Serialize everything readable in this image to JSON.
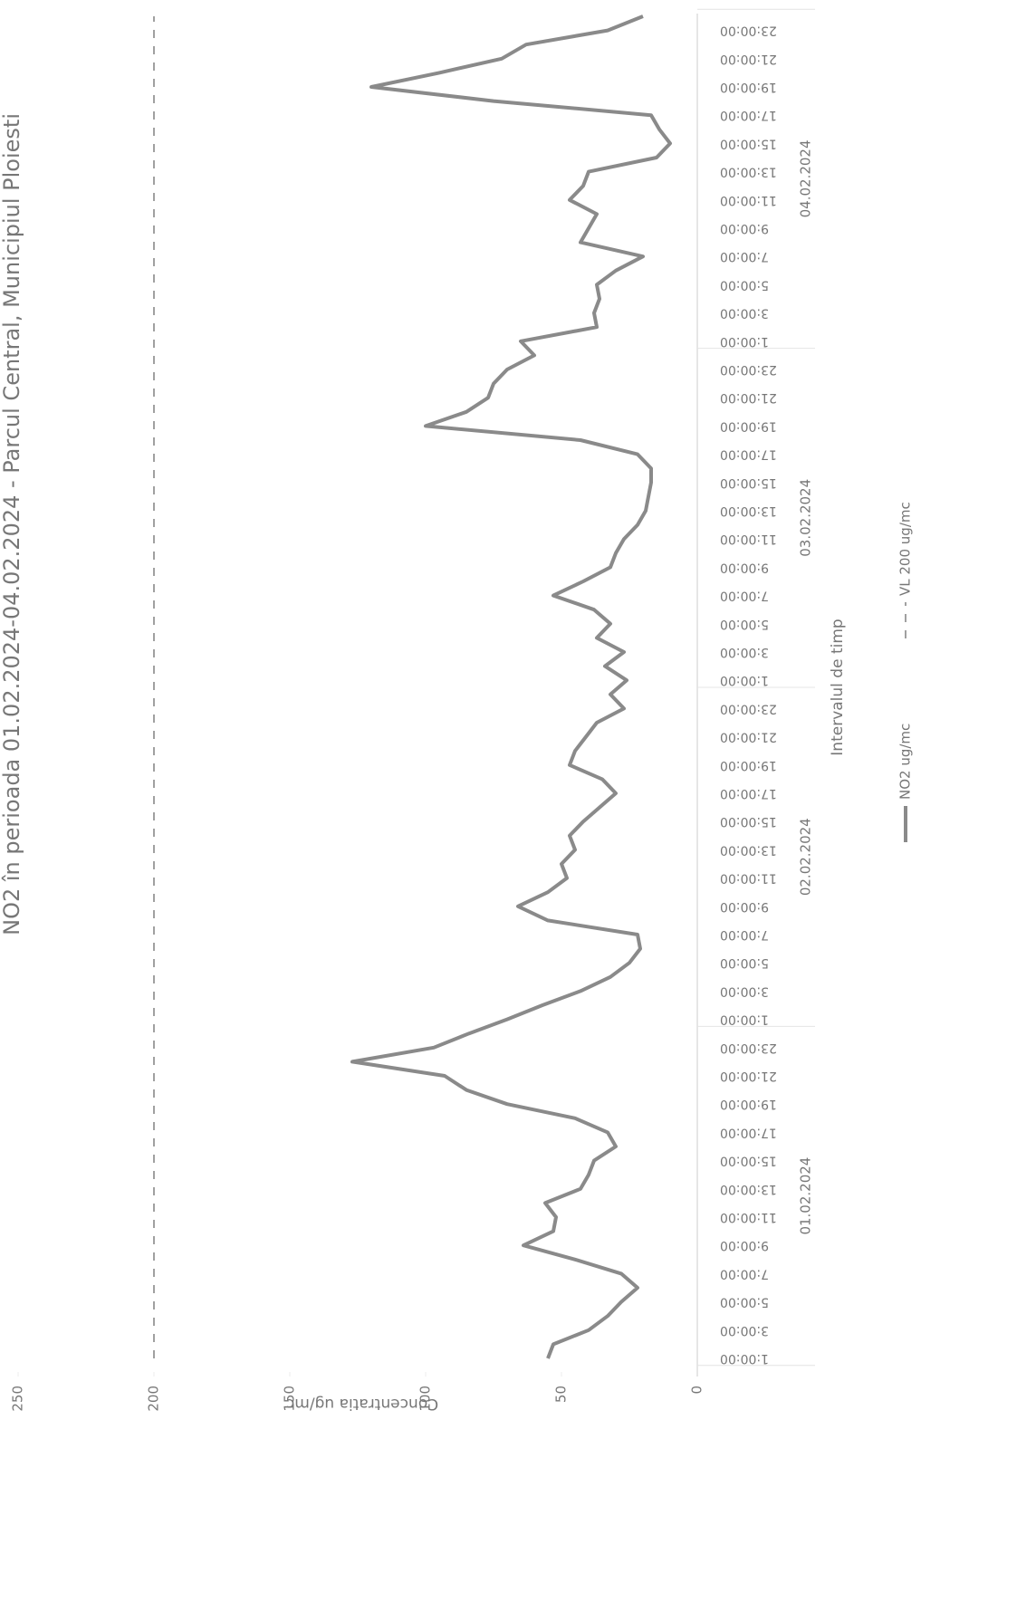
{
  "chart_data": {
    "type": "line",
    "title": "NO2 în perioada 01.02.2024-04.02.2024 - Parcul Central, Municipiul Ploiesti",
    "x_label": "Intervalul de timp",
    "y_label": "Concentratia ug/mc",
    "groups": [
      "01.02.2024",
      "02.02.2024",
      "03.02.2024",
      "04.02.2024"
    ],
    "categories": [
      "1:00:00",
      null,
      "3:00:00",
      null,
      "5:00:00",
      null,
      "7:00:00",
      null,
      "9:00:00",
      null,
      "11:00:00",
      null,
      "13:00:00",
      null,
      "15:00:00",
      null,
      "17:00:00",
      null,
      "19:00:00",
      null,
      "21:00:00",
      null,
      "23:00:00",
      null,
      "1:00:00",
      null,
      "3:00:00",
      null,
      "5:00:00",
      null,
      "7:00:00",
      null,
      "9:00:00",
      null,
      "11:00:00",
      null,
      "13:00:00",
      null,
      "15:00:00",
      null,
      "17:00:00",
      null,
      "19:00:00",
      null,
      "21:00:00",
      null,
      "23:00:00",
      null,
      "1:00:00",
      null,
      "3:00:00",
      null,
      "5:00:00",
      null,
      "7:00:00",
      null,
      "9:00:00",
      null,
      "11:00:00",
      null,
      "13:00:00",
      null,
      "15:00:00",
      null,
      "17:00:00",
      null,
      "19:00:00",
      null,
      "21:00:00",
      null,
      "23:00:00",
      null,
      "1:00:00",
      null,
      "3:00:00",
      null,
      "5:00:00",
      null,
      "7:00:00",
      null,
      "9:00:00",
      null,
      "11:00:00",
      null,
      "13:00:00",
      null,
      "15:00:00",
      null,
      "17:00:00",
      null,
      "19:00:00",
      null,
      "21:00:00",
      null,
      "23:00:00",
      null
    ],
    "series": [
      {
        "name": "NO2 ug/mc",
        "color": "#8a8a8a",
        "values": [
          55,
          53,
          40,
          33,
          28,
          22,
          28,
          45,
          64,
          53,
          52,
          56,
          43,
          40,
          38,
          30,
          33,
          45,
          70,
          85,
          93,
          127,
          97,
          84,
          70,
          57,
          43,
          32,
          25,
          21,
          22,
          55,
          66,
          55,
          48,
          50,
          45,
          47,
          42,
          36,
          30,
          35,
          47,
          45,
          41,
          37,
          27,
          32,
          26,
          34,
          27,
          37,
          32,
          38,
          53,
          42,
          32,
          30,
          27,
          22,
          19,
          18,
          17,
          17,
          22,
          43,
          100,
          85,
          77,
          75,
          70,
          60,
          65,
          37,
          38,
          36,
          37,
          30,
          20,
          43,
          40,
          37,
          47,
          42,
          40,
          15,
          10,
          14,
          17,
          75,
          120,
          95,
          72,
          63,
          33,
          20
        ]
      }
    ],
    "threshold": {
      "name": "VL 200 ug/mc",
      "value": 200,
      "color": "#a0a0a0",
      "dashed": true
    },
    "ylim": [
      0,
      250
    ],
    "yticks": [
      0,
      50,
      100,
      150,
      200,
      250
    ],
    "grid": false,
    "legend": "bottom"
  }
}
